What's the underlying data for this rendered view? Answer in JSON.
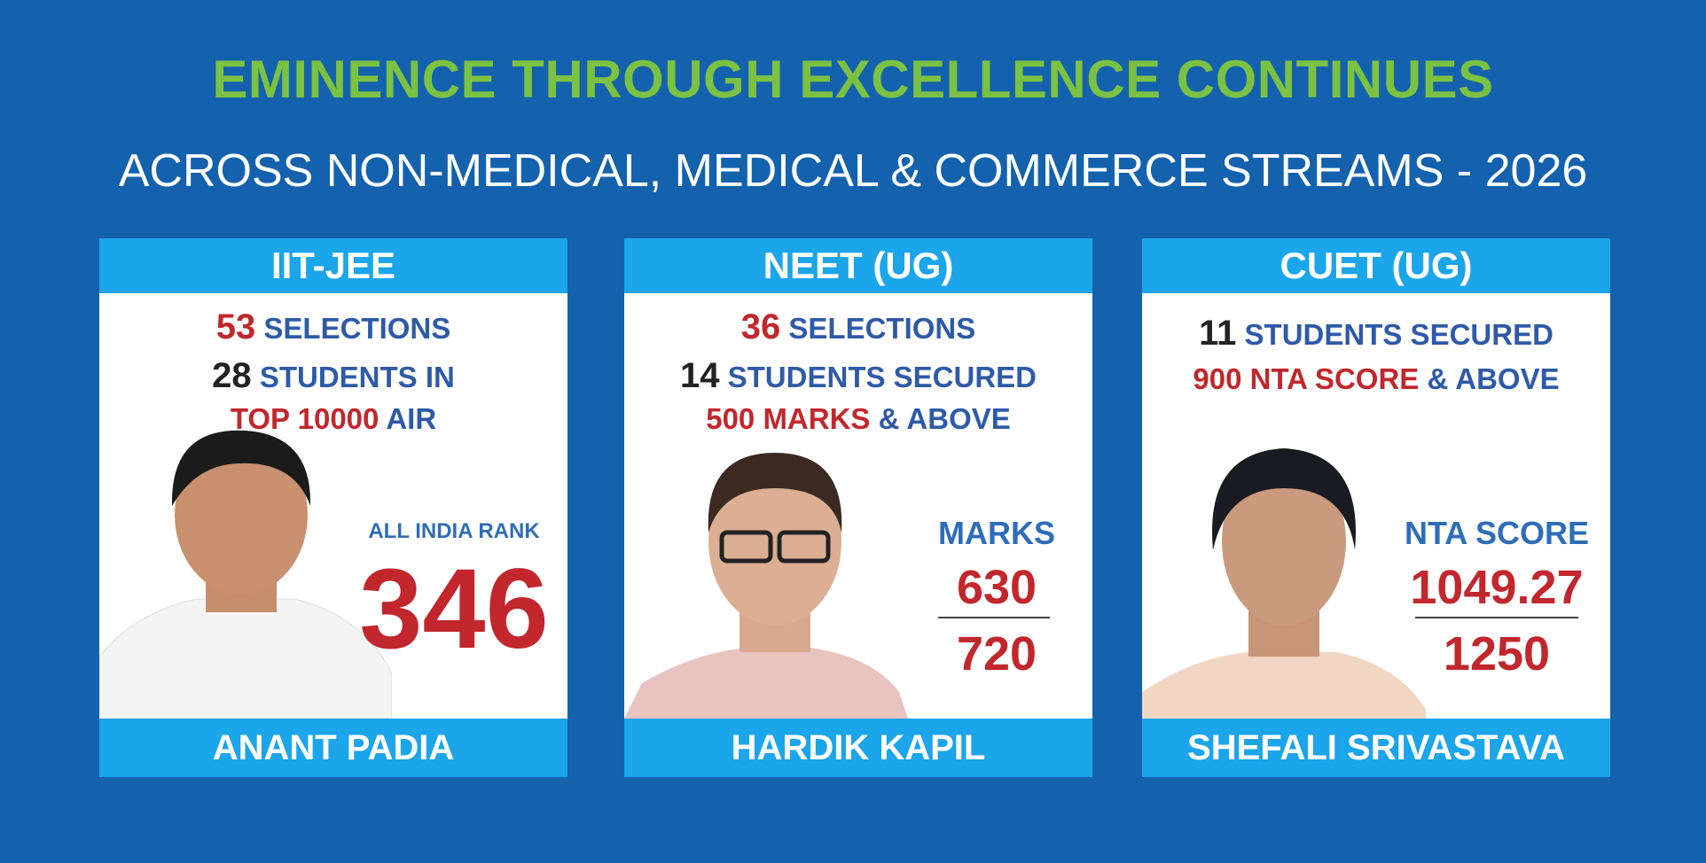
{
  "header": {
    "title": "EMINENCE THROUGH EXCELLENCE CONTINUES",
    "subtitle": "ACROSS NON-MEDICAL, MEDICAL & COMMERCE STREAMS - 2026"
  },
  "cards": [
    {
      "exam": "IIT-JEE",
      "lines": [
        [
          "53",
          "SELECTIONS"
        ],
        [
          "28",
          "STUDENTS IN"
        ],
        [
          "TOP 10000",
          "AIR"
        ]
      ],
      "stat_label": "ALL INDIA RANK",
      "stat_value": "346",
      "name": "ANANT PADIA"
    },
    {
      "exam": "NEET (UG)",
      "lines": [
        [
          "36",
          "SELECTIONS"
        ],
        [
          "14",
          "STUDENTS SECURED"
        ],
        [
          "500 MARKS",
          "& ABOVE"
        ]
      ],
      "stat_label": "MARKS",
      "stat_value": "630",
      "stat_total": "720",
      "name": "HARDIK KAPIL"
    },
    {
      "exam": "CUET (UG)",
      "lines": [
        [
          "11",
          "STUDENTS SECURED"
        ],
        [
          "900 NTA SCORE",
          "& ABOVE"
        ]
      ],
      "stat_label": "NTA SCORE",
      "stat_value": "1049.27",
      "stat_total": "1250",
      "name": "SHEFALI SRIVASTAVA"
    }
  ]
}
